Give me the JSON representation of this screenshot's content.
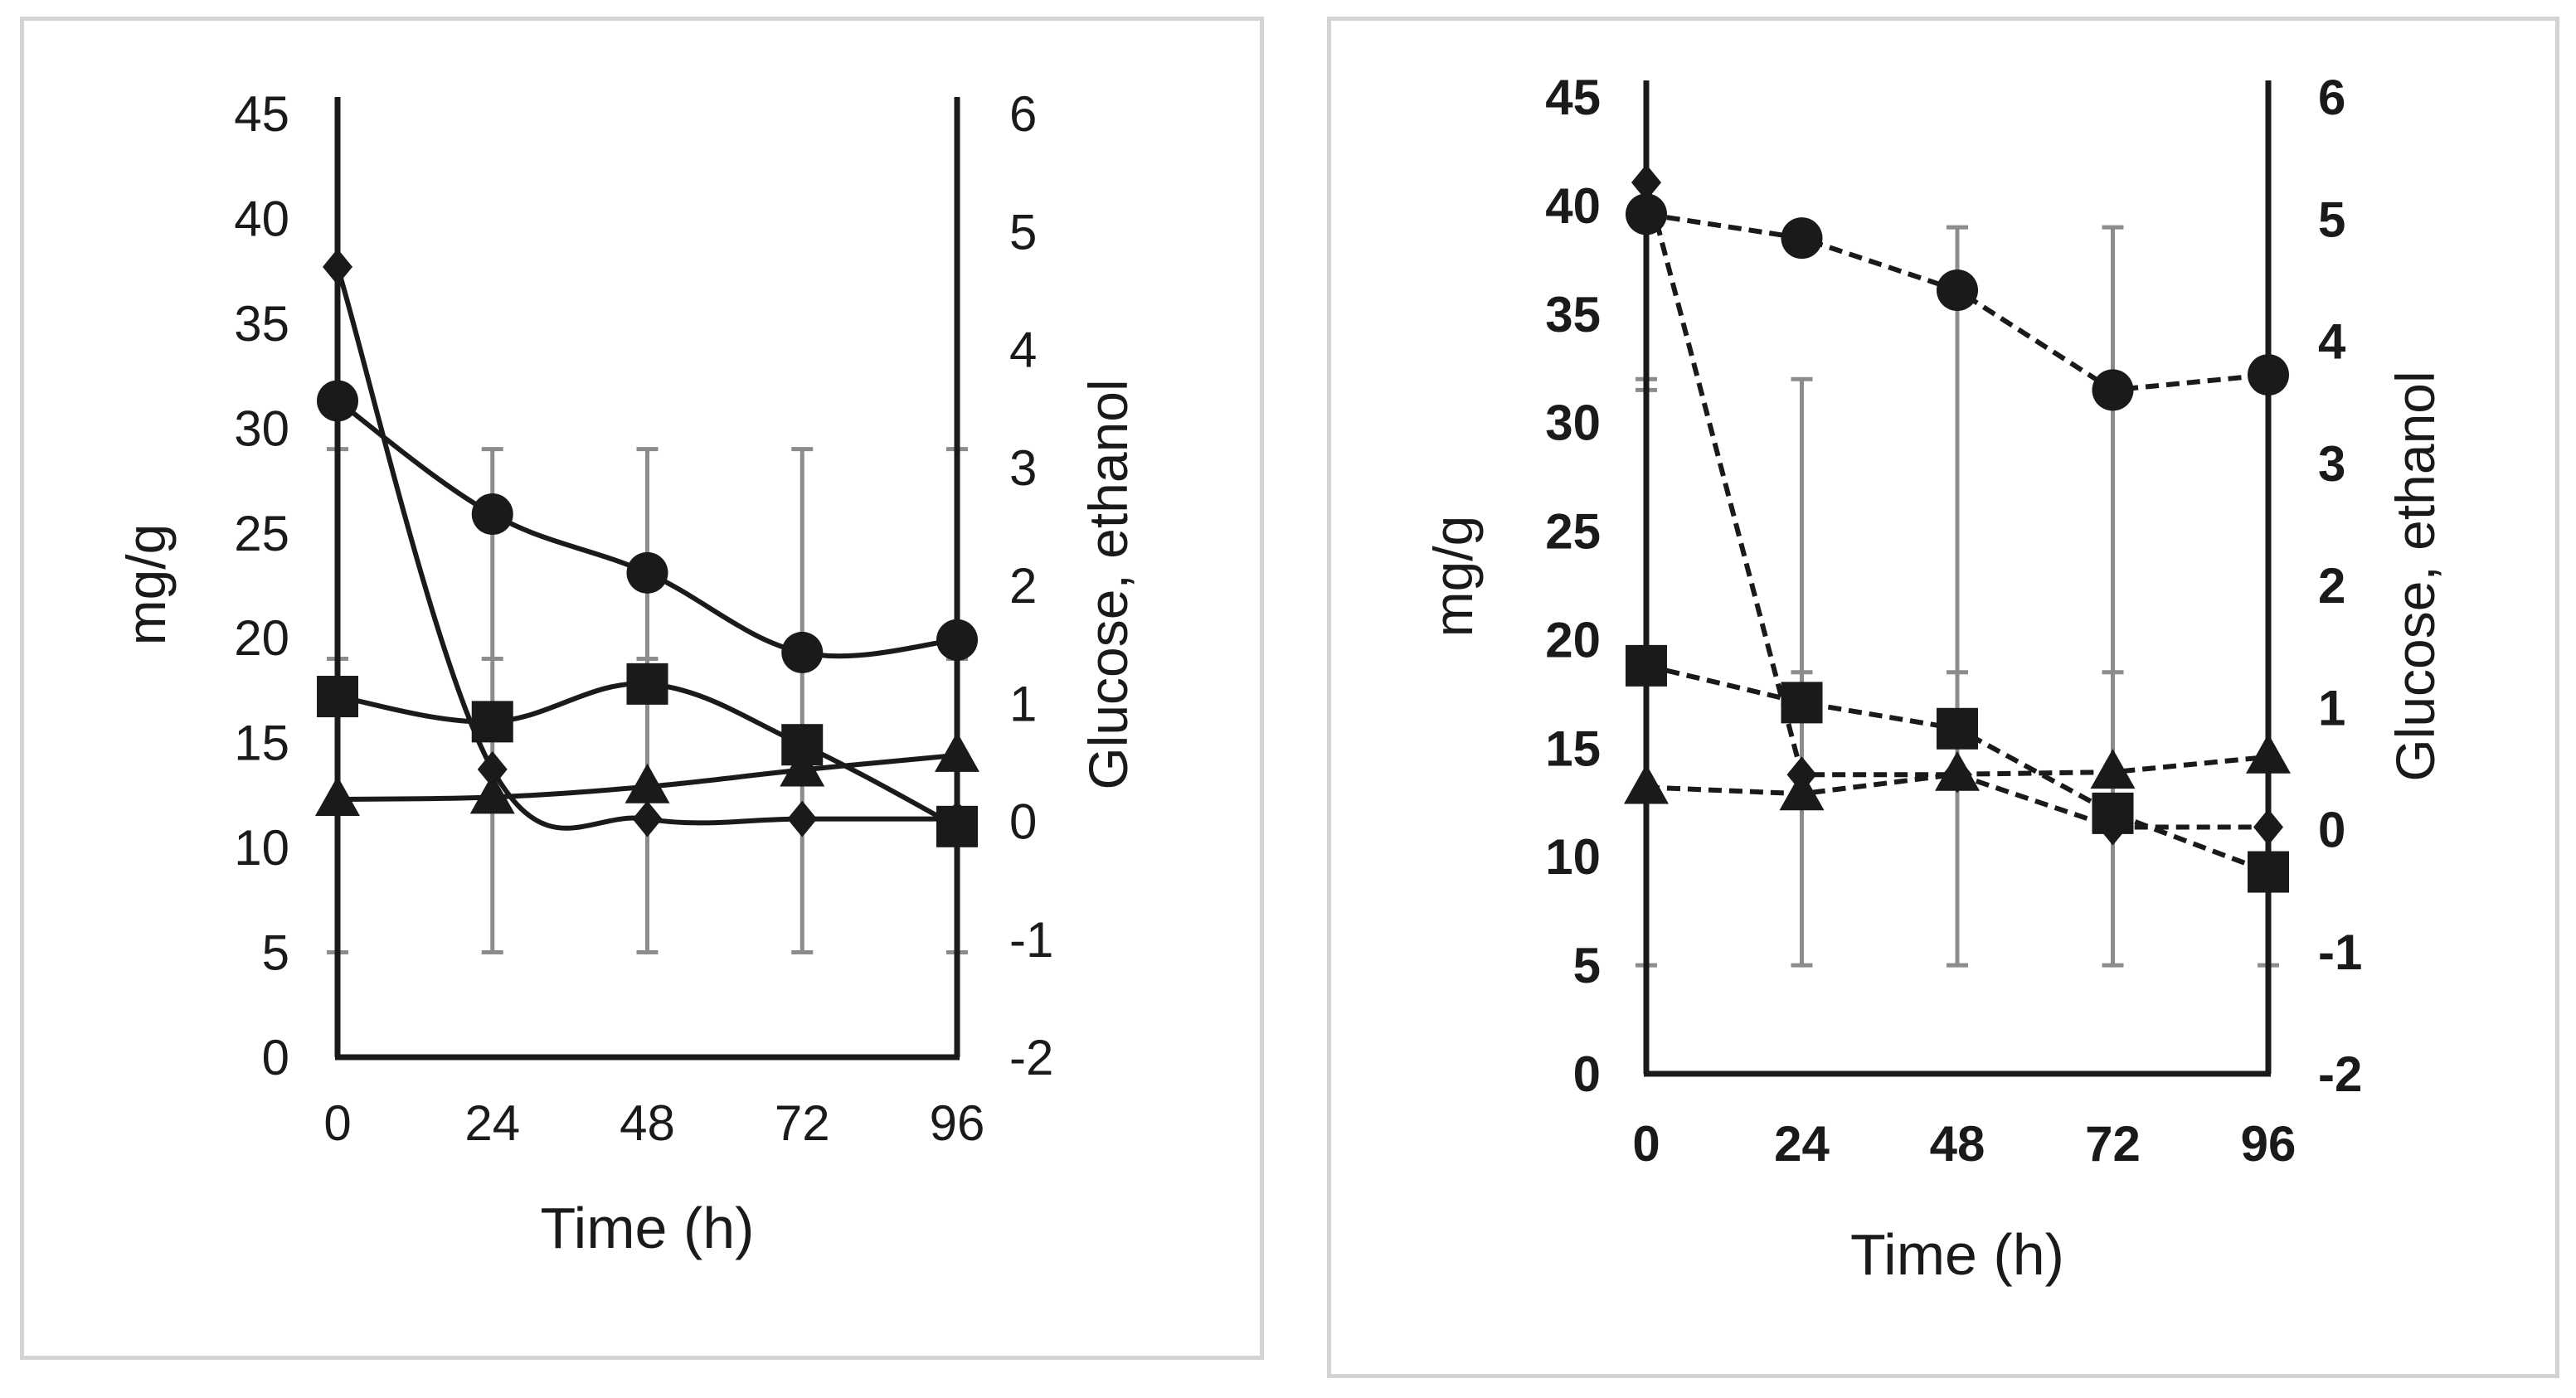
{
  "chart_data": [
    {
      "type": "line",
      "panel": "left",
      "line_style": "solid",
      "xlabel": "Time (h)",
      "ylabel": "mg/g",
      "y2label": "Glucose, ethanol",
      "x": [
        0,
        24,
        48,
        72,
        96
      ],
      "x_tick_labels": [
        "0",
        "24",
        "48",
        "72",
        "96"
      ],
      "ylim": [
        0,
        45
      ],
      "y_ticks": [
        0,
        5,
        10,
        15,
        20,
        25,
        30,
        35,
        40,
        45
      ],
      "y_tick_labels": [
        "0",
        "5",
        "10",
        "15",
        "20",
        "25",
        "30",
        "35",
        "40",
        "45"
      ],
      "y2lim": [
        -2,
        6
      ],
      "y2_ticks": [
        -2,
        -1,
        0,
        1,
        2,
        3,
        4,
        5,
        6
      ],
      "y2_tick_labels": [
        "-2",
        "-1",
        "0",
        "1",
        "2",
        "3",
        "4",
        "5",
        "6"
      ],
      "series": [
        {
          "name": "circle",
          "marker": "circle",
          "axis": "left",
          "values": [
            31.3,
            25.9,
            23.1,
            19.3,
            19.9
          ]
        },
        {
          "name": "square",
          "marker": "square",
          "axis": "left",
          "values": [
            17.2,
            16.0,
            17.8,
            14.9,
            11.0
          ]
        },
        {
          "name": "triangle",
          "marker": "triangle",
          "axis": "left",
          "values": [
            12.3,
            12.4,
            12.9,
            13.7,
            14.4
          ]
        },
        {
          "name": "diamond",
          "marker": "diamond",
          "axis": "right",
          "values": [
            4.7,
            0.44,
            0.02,
            0.02,
            0.02
          ]
        }
      ],
      "error_bars": [
        {
          "x": 0,
          "low": 5,
          "high": 29
        },
        {
          "x": 24,
          "low": 5,
          "high": 29
        },
        {
          "x": 48,
          "low": 5,
          "high": 29
        },
        {
          "x": 72,
          "low": 5,
          "high": 29
        },
        {
          "x": 96,
          "low": 5,
          "high": 29
        }
      ],
      "error_caps": [
        19,
        19,
        19,
        19,
        19
      ]
    },
    {
      "type": "line",
      "panel": "right",
      "line_style": "dashed",
      "xlabel": "Time (h)",
      "ylabel": "mg/g",
      "y2label": "Glucose, ethanol",
      "x": [
        0,
        24,
        48,
        72,
        96
      ],
      "x_tick_labels": [
        "0",
        "24",
        "48",
        "72",
        "96"
      ],
      "ylim": [
        0,
        45
      ],
      "y_ticks": [
        0,
        5,
        10,
        15,
        20,
        25,
        30,
        35,
        40,
        45
      ],
      "y_tick_labels": [
        "0",
        "5",
        "10",
        "15",
        "20",
        "25",
        "30",
        "35",
        "40",
        "45"
      ],
      "y2lim": [
        -2,
        6
      ],
      "y2_ticks": [
        -2,
        -1,
        0,
        1,
        2,
        3,
        4,
        5,
        6
      ],
      "y2_tick_labels": [
        "-2",
        "-1",
        "0",
        "1",
        "2",
        "3",
        "4",
        "5",
        "6"
      ],
      "series": [
        {
          "name": "circle",
          "marker": "circle",
          "axis": "left",
          "values": [
            39.6,
            38.5,
            36.1,
            31.5,
            32.2
          ]
        },
        {
          "name": "square",
          "marker": "square",
          "axis": "left",
          "values": [
            18.8,
            17.1,
            15.9,
            12.0,
            9.3
          ]
        },
        {
          "name": "triangle",
          "marker": "triangle",
          "axis": "left",
          "values": [
            13.2,
            12.9,
            13.8,
            13.9,
            14.6
          ]
        },
        {
          "name": "diamond",
          "marker": "diamond",
          "axis": "right",
          "values": [
            5.3,
            0.45,
            0.45,
            0.02,
            0.02
          ]
        }
      ],
      "error_bars": [
        {
          "x": 0,
          "low": 5,
          "high": 32
        },
        {
          "x": 24,
          "low": 5,
          "high": 32
        },
        {
          "x": 48,
          "low": 5,
          "high": 39
        },
        {
          "x": 72,
          "low": 5,
          "high": 39
        },
        {
          "x": 96,
          "low": 5,
          "high": 32
        }
      ],
      "error_caps": [
        31.5,
        18.5,
        18.5,
        18.5,
        31.5
      ]
    }
  ]
}
